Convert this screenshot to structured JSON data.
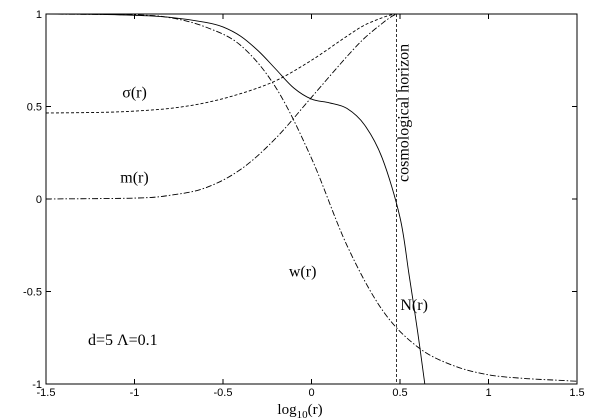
{
  "chart_data": {
    "type": "line",
    "xlabel": "log10(r)",
    "ylabel": "",
    "xlim": [
      -1.5,
      1.5
    ],
    "ylim": [
      -1,
      1
    ],
    "xticks": [
      -1.5,
      -1,
      -0.5,
      0,
      0.5,
      1,
      1.5
    ],
    "yticks": [
      -1,
      -0.5,
      0,
      0.5,
      1
    ],
    "xtick_labels": [
      "-1.5",
      "-1",
      "-0.5",
      "0",
      "0.5",
      "1",
      "1.5"
    ],
    "ytick_labels": [
      "-1",
      "-0.5",
      "0",
      "0.5",
      "1"
    ],
    "grid": false,
    "series": [
      {
        "name": "N(r)",
        "dash": "solid",
        "x": [
          -1.5,
          -1.2,
          -1.0,
          -0.8,
          -0.6,
          -0.5,
          -0.4,
          -0.3,
          -0.2,
          -0.1,
          0.0,
          0.1,
          0.2,
          0.3,
          0.4,
          0.5,
          0.55,
          0.6,
          0.64
        ],
        "y": [
          1.0,
          0.998,
          0.993,
          0.982,
          0.955,
          0.93,
          0.88,
          0.8,
          0.7,
          0.6,
          0.54,
          0.52,
          0.49,
          0.4,
          0.22,
          -0.1,
          -0.4,
          -0.72,
          -1.0
        ]
      },
      {
        "name": "σ(r)",
        "dash": "dashed",
        "x": [
          -1.5,
          -1.2,
          -1.0,
          -0.8,
          -0.6,
          -0.4,
          -0.2,
          0.0,
          0.2,
          0.3,
          0.4,
          0.45,
          0.48,
          0.5
        ],
        "y": [
          0.465,
          0.468,
          0.475,
          0.49,
          0.52,
          0.57,
          0.64,
          0.75,
          0.88,
          0.94,
          0.98,
          0.995,
          1.0,
          1.0
        ]
      },
      {
        "name": "m(r)",
        "dash": "dash-dot",
        "x": [
          -1.5,
          -1.0,
          -0.8,
          -0.6,
          -0.4,
          -0.2,
          0.0,
          0.2,
          0.3,
          0.4,
          0.45,
          0.48
        ],
        "y": [
          0.0,
          0.005,
          0.02,
          0.06,
          0.16,
          0.33,
          0.55,
          0.77,
          0.87,
          0.95,
          0.985,
          1.0
        ]
      },
      {
        "name": "w(r)",
        "dash": "dash-dot",
        "x": [
          -1.5,
          -1.0,
          -0.8,
          -0.6,
          -0.4,
          -0.2,
          0.0,
          0.2,
          0.4,
          0.6,
          0.8,
          1.0,
          1.2,
          1.4,
          1.5
        ],
        "y": [
          1.0,
          0.995,
          0.98,
          0.93,
          0.83,
          0.6,
          0.22,
          -0.25,
          -0.6,
          -0.8,
          -0.9,
          -0.95,
          -0.97,
          -0.98,
          -0.985
        ]
      }
    ],
    "vline": {
      "x": 0.48,
      "label": "cosmological horizon"
    },
    "annotations": {
      "params": "d=5   Λ=0.1"
    },
    "label_positions_data": [
      {
        "name": "σ(r)",
        "x": -1.0,
        "y": 0.55
      },
      {
        "name": "m(r)",
        "x": -1.0,
        "y": 0.09
      },
      {
        "name": "w(r)",
        "x": -0.05,
        "y": -0.42
      },
      {
        "name": "N(r)",
        "x": 0.58,
        "y": -0.6
      }
    ]
  }
}
